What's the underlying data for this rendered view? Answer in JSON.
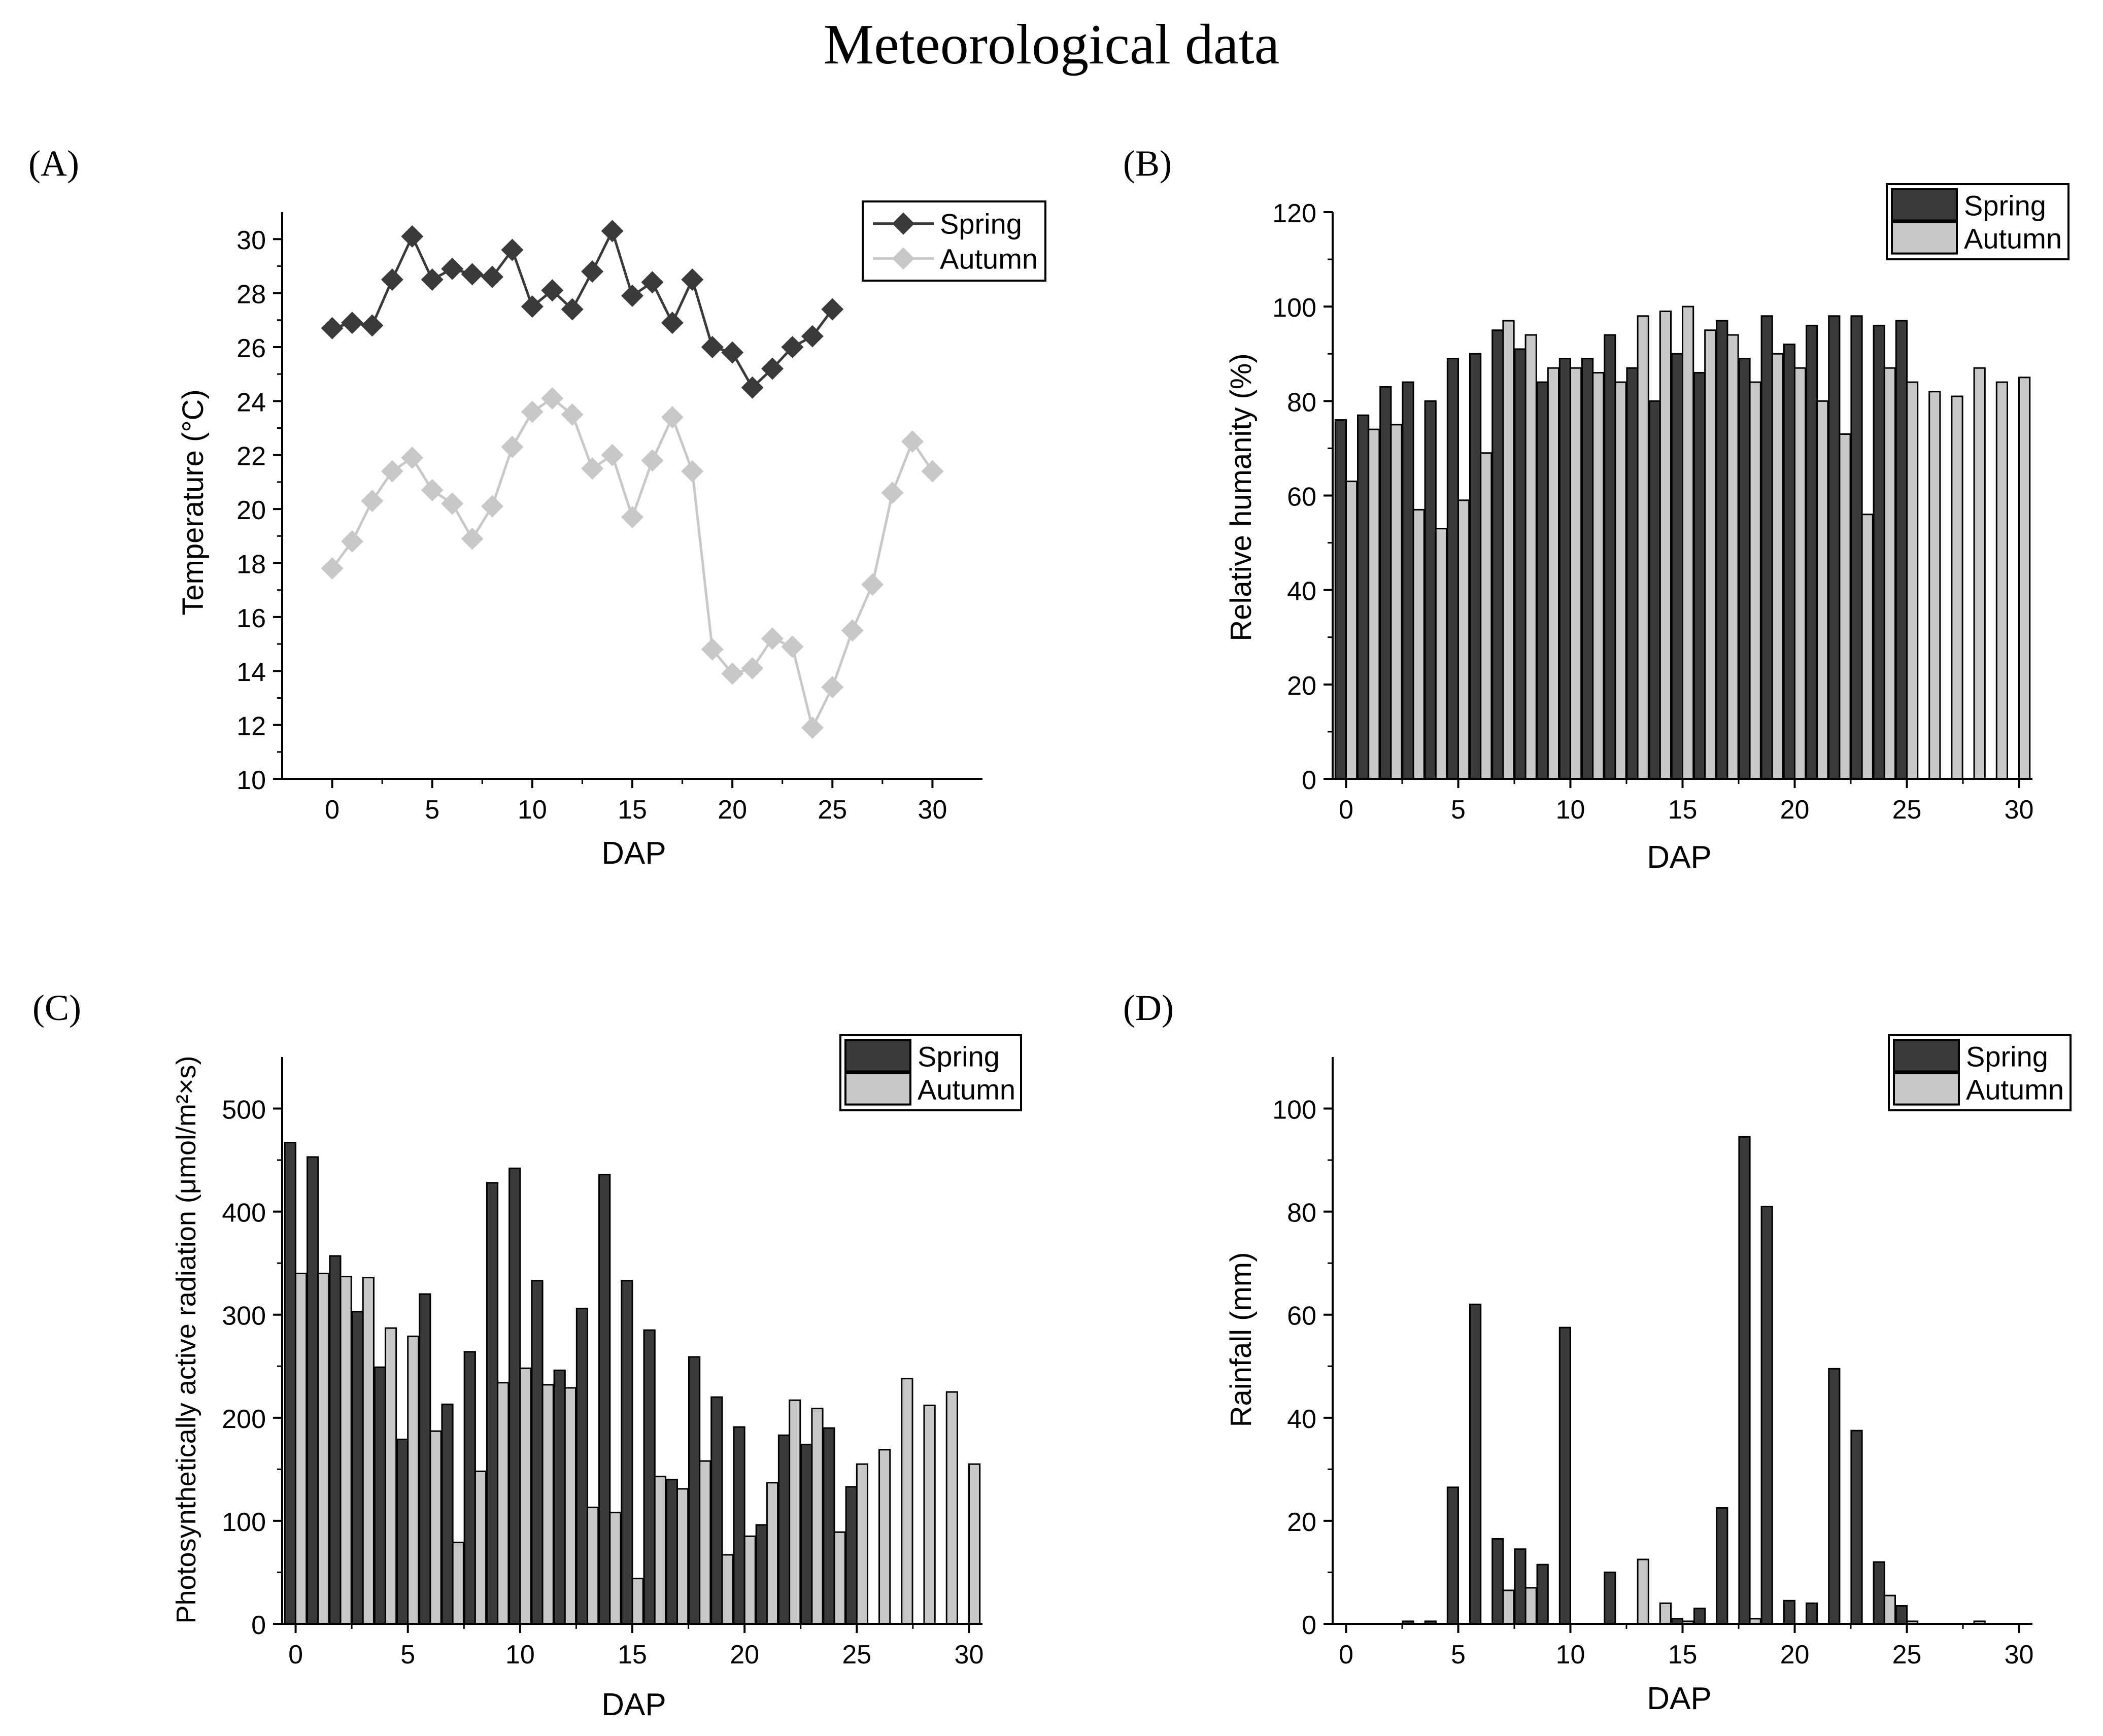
{
  "figure": {
    "title": "Meteorological data"
  },
  "colors": {
    "spring": "#3a3a3a",
    "autumn": "#c8c8c8",
    "axis": "#000000"
  },
  "series_names": [
    "Spring",
    "Autumn"
  ],
  "chart_data": [
    {
      "panel": "(A)",
      "type": "line",
      "title": "",
      "xlabel": "DAP",
      "ylabel": "Temperature (°C)",
      "xlim": [
        -2.5,
        32.5
      ],
      "ylim": [
        10,
        31
      ],
      "xticks": [
        0,
        5,
        10,
        15,
        20,
        25,
        30
      ],
      "yticks": [
        10,
        12,
        14,
        16,
        18,
        20,
        22,
        24,
        26,
        28,
        30
      ],
      "legend": "top-right",
      "series": [
        {
          "name": "Spring",
          "x": [
            0,
            1,
            2,
            3,
            4,
            5,
            6,
            7,
            8,
            9,
            10,
            11,
            12,
            13,
            14,
            15,
            16,
            17,
            18,
            19,
            20,
            21,
            22,
            23,
            24,
            25
          ],
          "values": [
            26.7,
            26.9,
            26.8,
            28.5,
            30.1,
            28.5,
            28.9,
            28.7,
            28.6,
            29.6,
            27.5,
            28.1,
            27.4,
            28.8,
            30.3,
            27.9,
            28.4,
            26.9,
            28.5,
            26.0,
            25.8,
            24.5,
            25.2,
            26.0,
            26.4,
            27.4
          ]
        },
        {
          "name": "Autumn",
          "x": [
            0,
            1,
            2,
            3,
            4,
            5,
            6,
            7,
            8,
            9,
            10,
            11,
            12,
            13,
            14,
            15,
            16,
            17,
            18,
            19,
            20,
            21,
            22,
            23,
            24,
            25,
            26,
            27,
            28,
            29,
            30
          ],
          "values": [
            17.8,
            18.8,
            20.3,
            21.4,
            21.9,
            20.7,
            20.2,
            18.9,
            20.1,
            22.3,
            23.6,
            24.1,
            23.5,
            21.5,
            22.0,
            19.7,
            21.8,
            23.4,
            21.4,
            14.8,
            13.9,
            14.1,
            15.2,
            14.9,
            11.9,
            13.4,
            15.5,
            17.2,
            20.6,
            22.5,
            21.4
          ]
        }
      ]
    },
    {
      "panel": "(B)",
      "type": "bar",
      "title": "",
      "xlabel": "DAP",
      "ylabel": "Relative humanity (%)",
      "xlim": [
        -0.6,
        30.6
      ],
      "ylim": [
        0,
        120
      ],
      "xticks": [
        0,
        5,
        10,
        15,
        20,
        25,
        30
      ],
      "yticks": [
        0,
        20,
        40,
        60,
        80,
        100,
        120
      ],
      "legend": "top-right",
      "x": [
        0,
        1,
        2,
        3,
        4,
        5,
        6,
        7,
        8,
        9,
        10,
        11,
        12,
        13,
        14,
        15,
        16,
        17,
        18,
        19,
        20,
        21,
        22,
        23,
        24,
        25,
        26,
        27,
        28,
        29,
        30
      ],
      "series": [
        {
          "name": "Spring",
          "values": [
            76,
            77,
            83,
            84,
            80,
            89,
            90,
            95,
            91,
            84,
            89,
            89,
            94,
            87,
            80,
            90,
            86,
            97,
            89,
            98,
            92,
            96,
            98,
            98,
            96,
            97,
            null,
            null,
            null,
            null,
            null
          ]
        },
        {
          "name": "Autumn",
          "values": [
            63,
            74,
            75,
            57,
            53,
            59,
            69,
            97,
            94,
            87,
            87,
            86,
            84,
            98,
            99,
            100,
            95,
            94,
            84,
            90,
            87,
            80,
            73,
            56,
            87,
            84,
            82,
            81,
            87,
            84,
            85
          ]
        }
      ]
    },
    {
      "panel": "(C)",
      "type": "bar",
      "title": "",
      "xlabel": "DAP",
      "ylabel": "Photosynthetically active radiation (μmol/m²×s)",
      "xlim": [
        -0.6,
        30.6
      ],
      "ylim": [
        0,
        550
      ],
      "xticks": [
        0,
        5,
        10,
        15,
        20,
        25,
        30
      ],
      "yticks": [
        0,
        100,
        200,
        300,
        400,
        500
      ],
      "legend": "top-right",
      "x": [
        0,
        1,
        2,
        3,
        4,
        5,
        6,
        7,
        8,
        9,
        10,
        11,
        12,
        13,
        14,
        15,
        16,
        17,
        18,
        19,
        20,
        21,
        22,
        23,
        24,
        25,
        26,
        27,
        28,
        29,
        30
      ],
      "series": [
        {
          "name": "Spring",
          "values": [
            467,
            453,
            357,
            303,
            249,
            179,
            320,
            213,
            264,
            428,
            442,
            333,
            246,
            306,
            436,
            333,
            285,
            140,
            259,
            220,
            191,
            96,
            183,
            174,
            190,
            133,
            null,
            null,
            null,
            null,
            null
          ]
        },
        {
          "name": "Autumn",
          "values": [
            340,
            340,
            337,
            336,
            287,
            279,
            187,
            79,
            148,
            234,
            248,
            232,
            229,
            113,
            108,
            44,
            143,
            131,
            158,
            67,
            85,
            137,
            217,
            209,
            89,
            155,
            169,
            238,
            212,
            225,
            155
          ]
        }
      ]
    },
    {
      "panel": "(D)",
      "type": "bar",
      "title": "",
      "xlabel": "DAP",
      "ylabel": "Rainfall (mm)",
      "xlim": [
        -0.6,
        30.6
      ],
      "ylim": [
        0,
        110
      ],
      "xticks": [
        0,
        5,
        10,
        15,
        20,
        25,
        30
      ],
      "yticks": [
        0,
        20,
        40,
        60,
        80,
        100
      ],
      "legend": "top-right",
      "x": [
        0,
        1,
        2,
        3,
        4,
        5,
        6,
        7,
        8,
        9,
        10,
        11,
        12,
        13,
        14,
        15,
        16,
        17,
        18,
        19,
        20,
        21,
        22,
        23,
        24,
        25,
        26,
        27,
        28,
        29,
        30
      ],
      "series": [
        {
          "name": "Spring",
          "values": [
            0,
            0,
            0,
            0.5,
            0.5,
            26.5,
            62,
            16.5,
            14.5,
            11.5,
            57.5,
            0,
            10,
            0,
            0,
            1,
            3,
            22.5,
            94.5,
            81,
            4.5,
            4,
            49.5,
            37.5,
            12,
            3.5,
            null,
            null,
            null,
            null,
            null
          ]
        },
        {
          "name": "Autumn",
          "values": [
            0,
            0,
            0,
            0,
            0,
            0,
            0,
            6.5,
            7,
            0,
            0,
            0,
            0,
            12.5,
            4,
            0.5,
            0,
            0,
            1,
            0,
            0,
            0,
            0,
            0,
            5.5,
            0.5,
            0,
            0,
            0.5,
            0,
            0
          ]
        }
      ]
    }
  ]
}
